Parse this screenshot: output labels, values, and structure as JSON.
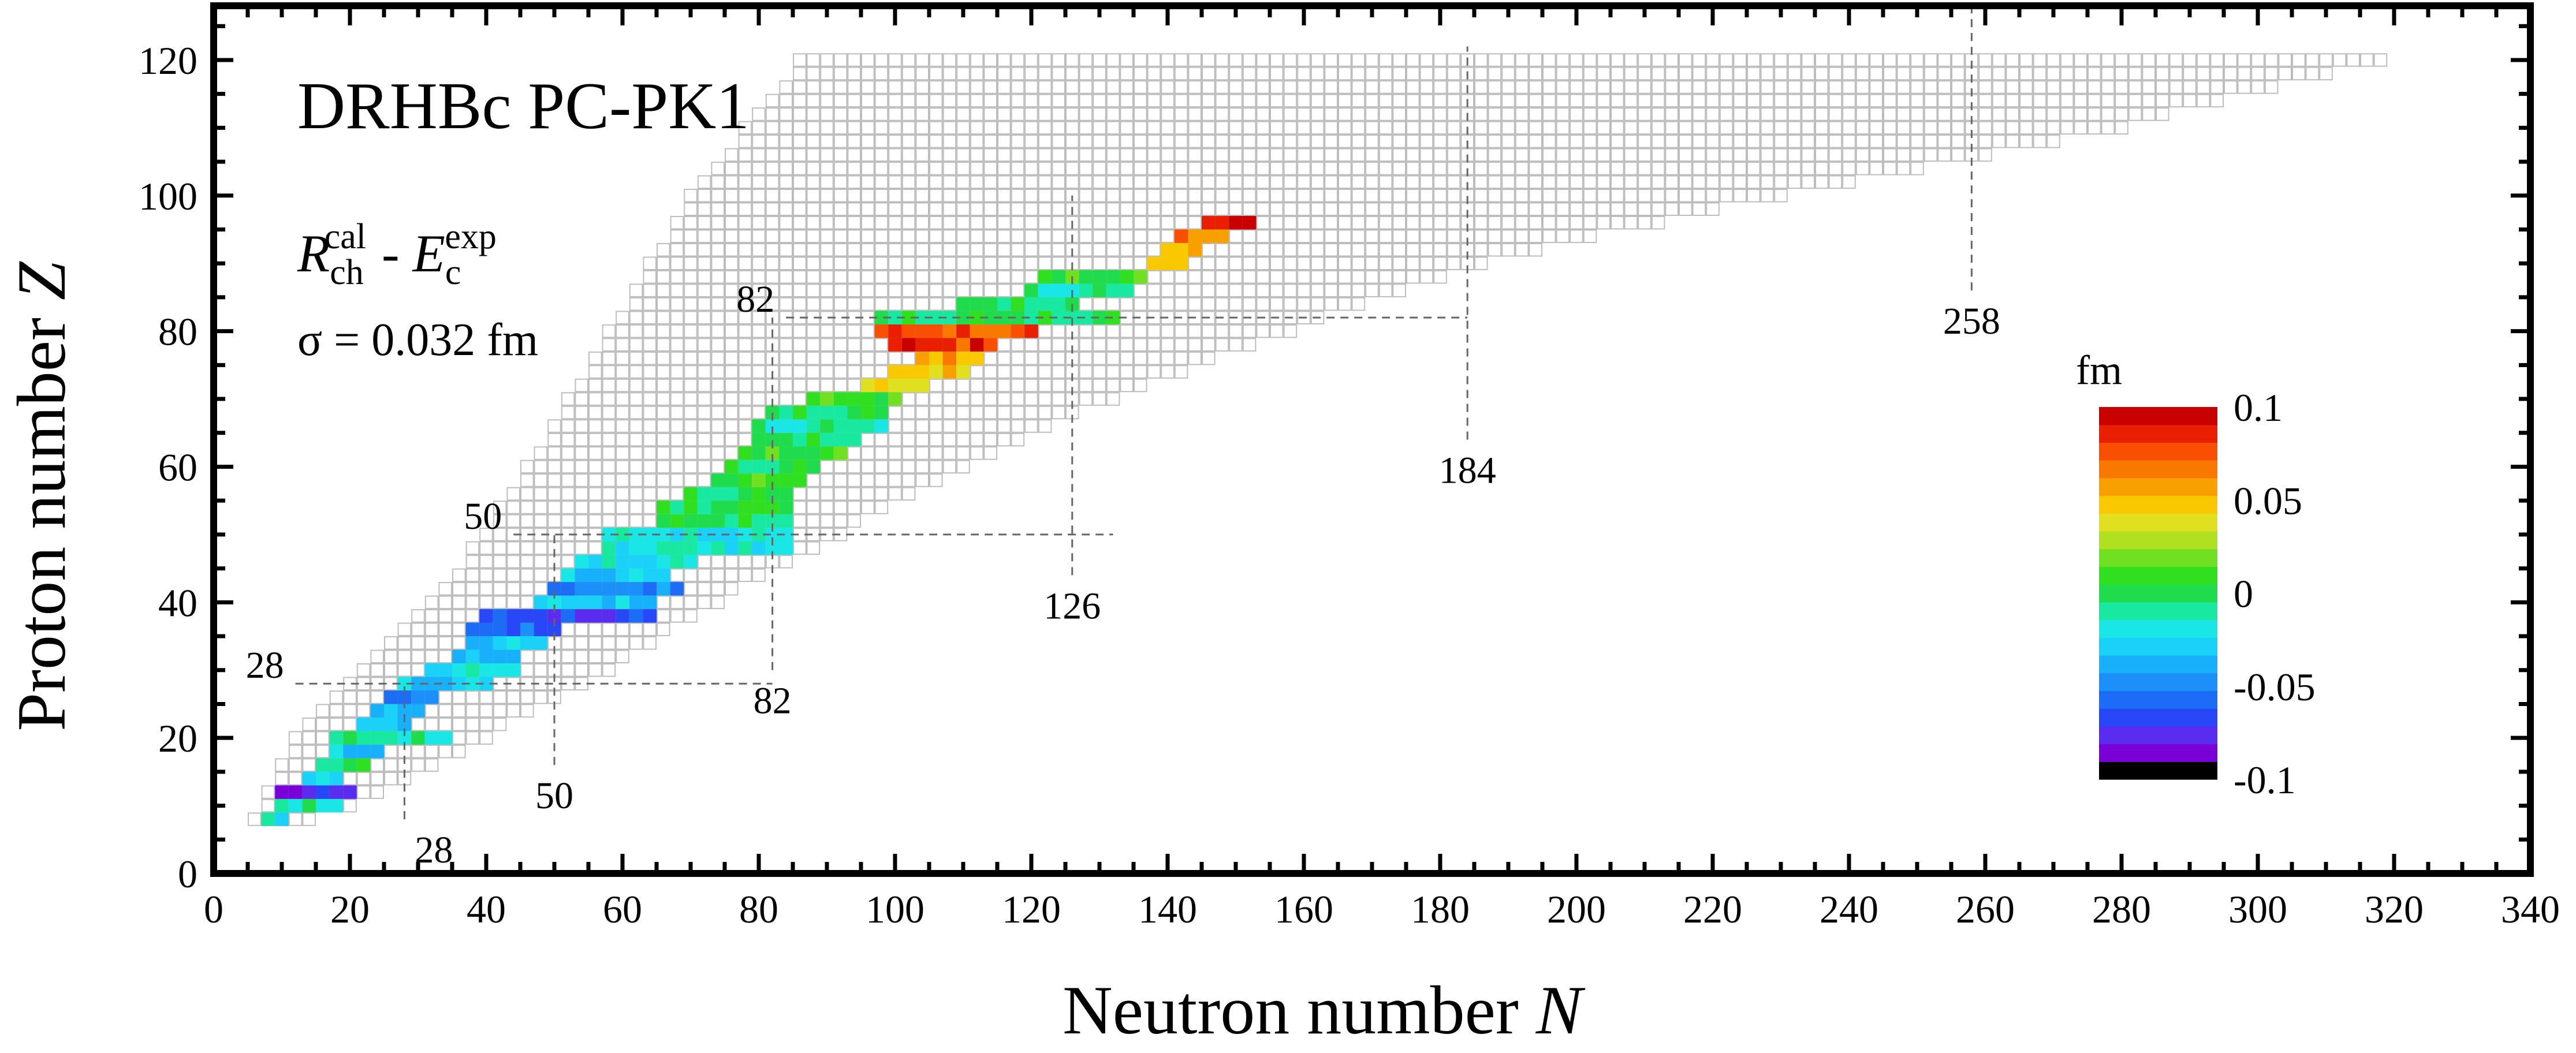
{
  "chart_data": {
    "type": "heatmap",
    "title": "DRHBc  PC-PK1",
    "xlabel": "Neutron number",
    "xlabel_var": "N",
    "ylabel": "Proton number",
    "ylabel_var": "Z",
    "xlim": [
      0,
      340
    ],
    "ylim": [
      0,
      128
    ],
    "xticks": [
      0,
      20,
      40,
      60,
      80,
      100,
      120,
      140,
      160,
      180,
      200,
      220,
      240,
      260,
      280,
      300,
      320,
      340
    ],
    "yticks": [
      0,
      20,
      40,
      60,
      80,
      100,
      120
    ],
    "annotation": {
      "label": "R",
      "label_sub": "ch",
      "label_sup": "cal",
      "sep": " - ",
      "label2": "E",
      "label2_sub": "c",
      "label2_sup": "exp"
    },
    "sigma_text": "σ = 0.032 fm",
    "magic_numbers": [
      {
        "label": "28",
        "kind": "neutron",
        "value": 28
      },
      {
        "label": "50",
        "kind": "neutron",
        "value": 50
      },
      {
        "label": "82",
        "kind": "neutron",
        "value": 82
      },
      {
        "label": "126",
        "kind": "neutron",
        "value": 126
      },
      {
        "label": "184",
        "kind": "neutron",
        "value": 184
      },
      {
        "label": "258",
        "kind": "neutron",
        "value": 258
      },
      {
        "label": "28",
        "kind": "proton",
        "value": 28
      },
      {
        "label": "50",
        "kind": "proton",
        "value": 50
      },
      {
        "label": "82",
        "kind": "proton",
        "value": 82
      }
    ],
    "colorbar": {
      "unit": "fm",
      "min": -0.1,
      "max": 0.1,
      "tick_labels": [
        "0.1",
        "0.05",
        "0",
        "-0.05",
        "-0.1"
      ],
      "tick_values": [
        0.1,
        0.05,
        0,
        -0.05,
        -0.1
      ],
      "colors": [
        "#000000",
        "#7a00d8",
        "#5a2cf0",
        "#2848f8",
        "#1c6cf6",
        "#1c8ff8",
        "#18b0fa",
        "#1ad2f8",
        "#1ae6e6",
        "#18e8a0",
        "#20dc4c",
        "#30e020",
        "#70e020",
        "#b0e020",
        "#e0e020",
        "#f8c800",
        "#f8a000",
        "#f87800",
        "#f85000",
        "#e82000",
        "#c80000"
      ]
    },
    "grid_color": "#bdbdbd",
    "frame_color": "#000000"
  }
}
